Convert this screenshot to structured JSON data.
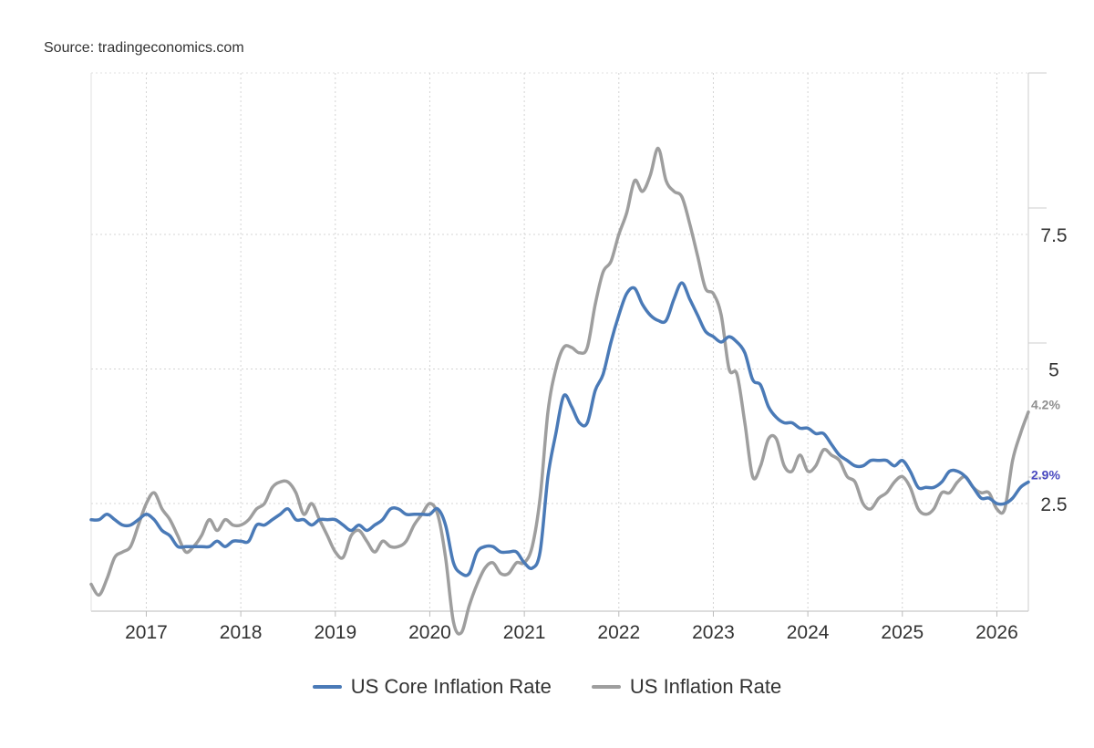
{
  "source": "Source: tradingeconomics.com",
  "chart_data": {
    "type": "line",
    "title": "",
    "xlabel": "",
    "ylabel": "",
    "x_tick_labels": [
      "2017",
      "2018",
      "2019",
      "2020",
      "2021",
      "2022",
      "2023",
      "2024",
      "2025",
      "2026"
    ],
    "y_ticks": [
      2.5,
      5,
      7.5
    ],
    "y_tick_labels": [
      "2.5",
      "5",
      "7.5"
    ],
    "xlim": [
      "2016-06",
      "2026-05"
    ],
    "ylim": [
      0,
      10
    ],
    "grid": true,
    "legend_position": "bottom",
    "x": [
      "2016-06",
      "2016-07",
      "2016-08",
      "2016-09",
      "2016-10",
      "2016-11",
      "2016-12",
      "2017-01",
      "2017-02",
      "2017-03",
      "2017-04",
      "2017-05",
      "2017-06",
      "2017-07",
      "2017-08",
      "2017-09",
      "2017-10",
      "2017-11",
      "2017-12",
      "2018-01",
      "2018-02",
      "2018-03",
      "2018-04",
      "2018-05",
      "2018-06",
      "2018-07",
      "2018-08",
      "2018-09",
      "2018-10",
      "2018-11",
      "2018-12",
      "2019-01",
      "2019-02",
      "2019-03",
      "2019-04",
      "2019-05",
      "2019-06",
      "2019-07",
      "2019-08",
      "2019-09",
      "2019-10",
      "2019-11",
      "2019-12",
      "2020-01",
      "2020-02",
      "2020-03",
      "2020-04",
      "2020-05",
      "2020-06",
      "2020-07",
      "2020-08",
      "2020-09",
      "2020-10",
      "2020-11",
      "2020-12",
      "2021-01",
      "2021-02",
      "2021-03",
      "2021-04",
      "2021-05",
      "2021-06",
      "2021-07",
      "2021-08",
      "2021-09",
      "2021-10",
      "2021-11",
      "2021-12",
      "2022-01",
      "2022-02",
      "2022-03",
      "2022-04",
      "2022-05",
      "2022-06",
      "2022-07",
      "2022-08",
      "2022-09",
      "2022-10",
      "2022-11",
      "2022-12",
      "2023-01",
      "2023-02",
      "2023-03",
      "2023-04",
      "2023-05",
      "2023-06",
      "2023-07",
      "2023-08",
      "2023-09",
      "2023-10",
      "2023-11",
      "2023-12",
      "2024-01",
      "2024-02",
      "2024-03",
      "2024-04",
      "2024-05",
      "2024-06",
      "2024-07",
      "2024-08",
      "2024-09",
      "2024-10",
      "2024-11",
      "2024-12",
      "2025-01",
      "2025-02",
      "2025-03",
      "2025-04",
      "2025-05",
      "2025-06",
      "2025-07",
      "2025-08",
      "2025-09",
      "2025-10",
      "2025-11",
      "2025-12",
      "2026-01",
      "2026-02",
      "2026-03",
      "2026-04",
      "2026-05"
    ],
    "series": [
      {
        "name": "US Core Inflation Rate",
        "color": "#4a7ab7",
        "values": [
          2.2,
          2.2,
          2.3,
          2.2,
          2.1,
          2.1,
          2.2,
          2.3,
          2.2,
          2.0,
          1.9,
          1.7,
          1.7,
          1.7,
          1.7,
          1.7,
          1.8,
          1.7,
          1.8,
          1.8,
          1.8,
          2.1,
          2.1,
          2.2,
          2.3,
          2.4,
          2.2,
          2.2,
          2.1,
          2.2,
          2.2,
          2.2,
          2.1,
          2.0,
          2.1,
          2.0,
          2.1,
          2.2,
          2.4,
          2.4,
          2.3,
          2.3,
          2.3,
          2.3,
          2.4,
          2.1,
          1.4,
          1.2,
          1.2,
          1.6,
          1.7,
          1.7,
          1.6,
          1.6,
          1.6,
          1.4,
          1.3,
          1.6,
          3.0,
          3.8,
          4.5,
          4.3,
          4.0,
          4.0,
          4.6,
          4.9,
          5.5,
          6.0,
          6.4,
          6.5,
          6.2,
          6.0,
          5.9,
          5.9,
          6.3,
          6.6,
          6.3,
          6.0,
          5.7,
          5.6,
          5.5,
          5.6,
          5.5,
          5.3,
          4.8,
          4.7,
          4.3,
          4.1,
          4.0,
          4.0,
          3.9,
          3.9,
          3.8,
          3.8,
          3.6,
          3.4,
          3.3,
          3.2,
          3.2,
          3.3,
          3.3,
          3.3,
          3.2,
          3.3,
          3.1,
          2.8,
          2.8,
          2.8,
          2.9,
          3.1,
          3.1,
          3.0,
          2.8,
          2.6,
          2.6,
          2.5,
          2.5,
          2.6,
          2.8,
          2.9
        ]
      },
      {
        "name": "US Inflation Rate",
        "color": "#9e9e9e",
        "values": [
          1.0,
          0.8,
          1.1,
          1.5,
          1.6,
          1.7,
          2.1,
          2.5,
          2.7,
          2.4,
          2.2,
          1.9,
          1.6,
          1.7,
          1.9,
          2.2,
          2.0,
          2.2,
          2.1,
          2.1,
          2.2,
          2.4,
          2.5,
          2.8,
          2.9,
          2.9,
          2.7,
          2.3,
          2.5,
          2.2,
          1.9,
          1.6,
          1.5,
          1.9,
          2.0,
          1.8,
          1.6,
          1.8,
          1.7,
          1.7,
          1.8,
          2.1,
          2.3,
          2.5,
          2.3,
          1.5,
          0.3,
          0.1,
          0.6,
          1.0,
          1.3,
          1.4,
          1.2,
          1.2,
          1.4,
          1.4,
          1.7,
          2.6,
          4.2,
          5.0,
          5.4,
          5.4,
          5.3,
          5.4,
          6.2,
          6.8,
          7.0,
          7.5,
          7.9,
          8.5,
          8.3,
          8.6,
          9.1,
          8.5,
          8.3,
          8.2,
          7.7,
          7.1,
          6.5,
          6.4,
          6.0,
          5.0,
          4.9,
          4.0,
          3.0,
          3.2,
          3.7,
          3.7,
          3.2,
          3.1,
          3.4,
          3.1,
          3.2,
          3.5,
          3.4,
          3.3,
          3.0,
          2.9,
          2.5,
          2.4,
          2.6,
          2.7,
          2.9,
          3.0,
          2.8,
          2.4,
          2.3,
          2.4,
          2.7,
          2.7,
          2.9,
          3.0,
          2.8,
          2.7,
          2.7,
          2.4,
          2.4,
          3.3,
          3.8,
          4.2
        ]
      }
    ],
    "end_labels": [
      "2.9%",
      "4.2%"
    ]
  }
}
